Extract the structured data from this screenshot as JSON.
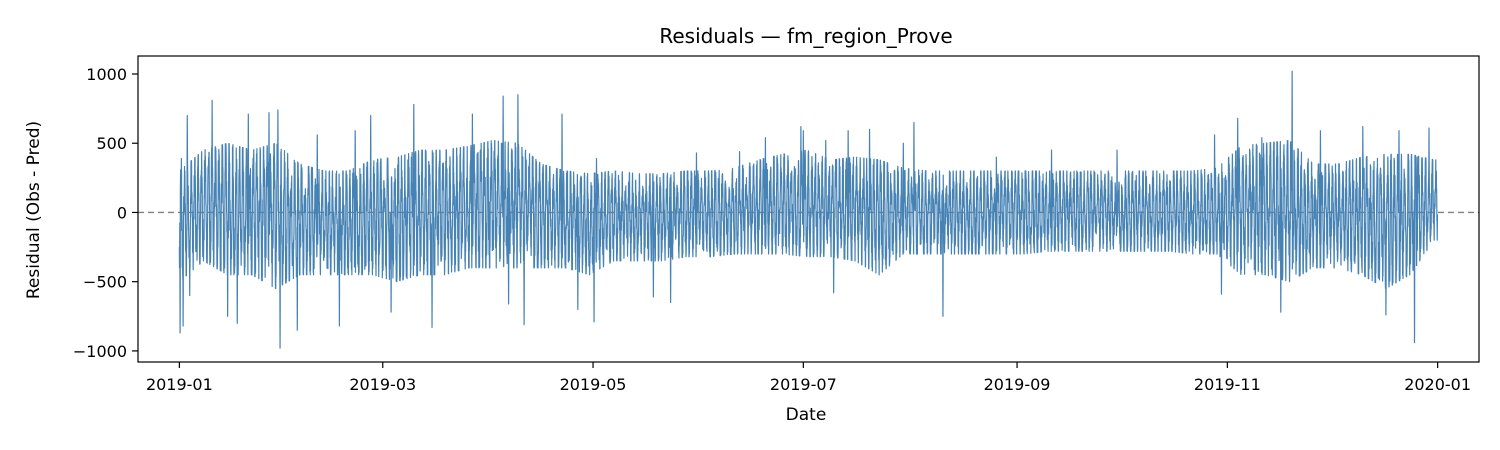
{
  "chart_data": {
    "type": "line",
    "title": "Residuals — fm_region_Prove",
    "xlabel": "Date",
    "ylabel": "Residual (Obs - Pred)",
    "x_range": [
      "2018-12-20",
      "2020-01-13"
    ],
    "ylim": [
      -1080,
      1130
    ],
    "x_ticks": [
      "2019-01",
      "2019-03",
      "2019-05",
      "2019-07",
      "2019-09",
      "2019-11",
      "2020-01"
    ],
    "x_tick_labels": [
      "2019-01",
      "2019-03",
      "2019-05",
      "2019-07",
      "2019-09",
      "2019-11",
      "2020-01"
    ],
    "y_ticks": [
      -1000,
      -500,
      0,
      500,
      1000
    ],
    "y_tick_labels": [
      "−1000",
      "−500",
      "0",
      "500",
      "1000"
    ],
    "grid": false,
    "reference_line": {
      "y": 0,
      "style": "dashed",
      "color": "#808080"
    },
    "series": [
      {
        "color": "#4682b4",
        "data_start": "2019-01-01",
        "data_end": "2019-12-31",
        "frequency": "hourly",
        "band_upper": [
          [
            0,
            300
          ],
          [
            7,
            450
          ],
          [
            14,
            500
          ],
          [
            21,
            450
          ],
          [
            28,
            500
          ],
          [
            35,
            350
          ],
          [
            42,
            300
          ],
          [
            49,
            300
          ],
          [
            56,
            380
          ],
          [
            63,
            400
          ],
          [
            70,
            450
          ],
          [
            77,
            450
          ],
          [
            84,
            480
          ],
          [
            91,
            520
          ],
          [
            98,
            500
          ],
          [
            105,
            350
          ],
          [
            112,
            300
          ],
          [
            119,
            280
          ],
          [
            126,
            300
          ],
          [
            133,
            280
          ],
          [
            140,
            280
          ],
          [
            147,
            300
          ],
          [
            154,
            300
          ],
          [
            161,
            320
          ],
          [
            168,
            380
          ],
          [
            175,
            420
          ],
          [
            182,
            450
          ],
          [
            189,
            380
          ],
          [
            196,
            400
          ],
          [
            203,
            380
          ],
          [
            210,
            320
          ],
          [
            217,
            300
          ],
          [
            224,
            300
          ],
          [
            231,
            300
          ],
          [
            238,
            300
          ],
          [
            245,
            300
          ],
          [
            252,
            300
          ],
          [
            259,
            300
          ],
          [
            266,
            300
          ],
          [
            273,
            300
          ],
          [
            280,
            300
          ],
          [
            287,
            300
          ],
          [
            294,
            300
          ],
          [
            301,
            320
          ],
          [
            308,
            480
          ],
          [
            315,
            500
          ],
          [
            322,
            520
          ],
          [
            329,
            350
          ],
          [
            336,
            350
          ],
          [
            343,
            400
          ],
          [
            350,
            420
          ],
          [
            357,
            420
          ],
          [
            364,
            380
          ]
        ],
        "band_lower": [
          [
            0,
            -500
          ],
          [
            7,
            -350
          ],
          [
            14,
            -450
          ],
          [
            21,
            -450
          ],
          [
            28,
            -550
          ],
          [
            35,
            -450
          ],
          [
            42,
            -450
          ],
          [
            49,
            -450
          ],
          [
            56,
            -450
          ],
          [
            63,
            -500
          ],
          [
            70,
            -450
          ],
          [
            77,
            -450
          ],
          [
            84,
            -400
          ],
          [
            91,
            -400
          ],
          [
            98,
            -400
          ],
          [
            105,
            -400
          ],
          [
            112,
            -400
          ],
          [
            119,
            -450
          ],
          [
            126,
            -350
          ],
          [
            133,
            -350
          ],
          [
            140,
            -350
          ],
          [
            147,
            -320
          ],
          [
            154,
            -320
          ],
          [
            161,
            -300
          ],
          [
            168,
            -300
          ],
          [
            175,
            -300
          ],
          [
            182,
            -320
          ],
          [
            189,
            -320
          ],
          [
            196,
            -350
          ],
          [
            203,
            -450
          ],
          [
            210,
            -300
          ],
          [
            217,
            -300
          ],
          [
            224,
            -300
          ],
          [
            231,
            -300
          ],
          [
            238,
            -300
          ],
          [
            245,
            -300
          ],
          [
            252,
            -280
          ],
          [
            259,
            -280
          ],
          [
            266,
            -280
          ],
          [
            273,
            -280
          ],
          [
            280,
            -280
          ],
          [
            287,
            -280
          ],
          [
            294,
            -300
          ],
          [
            301,
            -300
          ],
          [
            308,
            -450
          ],
          [
            315,
            -450
          ],
          [
            322,
            -500
          ],
          [
            329,
            -400
          ],
          [
            336,
            -400
          ],
          [
            343,
            -450
          ],
          [
            350,
            -550
          ],
          [
            357,
            -450
          ],
          [
            364,
            -200
          ]
        ],
        "extremes": [
          [
            0.2,
            -870
          ],
          [
            0.6,
            390
          ],
          [
            1.1,
            -820
          ],
          [
            1.6,
            300
          ],
          [
            2.3,
            700
          ],
          [
            3.0,
            -600
          ],
          [
            9.5,
            810
          ],
          [
            14.0,
            -750
          ],
          [
            16.8,
            -800
          ],
          [
            20.0,
            710
          ],
          [
            26.0,
            720
          ],
          [
            28.6,
            740
          ],
          [
            29.2,
            -980
          ],
          [
            34.2,
            -850
          ],
          [
            40.0,
            560
          ],
          [
            46.4,
            -820
          ],
          [
            51.0,
            590
          ],
          [
            55.5,
            700
          ],
          [
            61.4,
            -720
          ],
          [
            68.0,
            780
          ],
          [
            73.3,
            -830
          ],
          [
            85.0,
            710
          ],
          [
            93.9,
            840
          ],
          [
            95.5,
            -660
          ],
          [
            98.2,
            850
          ],
          [
            100.0,
            -810
          ],
          [
            111.0,
            710
          ],
          [
            115.6,
            -700
          ],
          [
            120.3,
            -790
          ],
          [
            121.0,
            390
          ],
          [
            137.5,
            -610
          ],
          [
            142.5,
            -650
          ],
          [
            150.0,
            430
          ],
          [
            162.5,
            440
          ],
          [
            170.0,
            540
          ],
          [
            180.3,
            620
          ],
          [
            181.0,
            590
          ],
          [
            187.5,
            520
          ],
          [
            189.8,
            -580
          ],
          [
            194.0,
            590
          ],
          [
            200.2,
            600
          ],
          [
            210.0,
            500
          ],
          [
            213.1,
            650
          ],
          [
            221.5,
            -750
          ],
          [
            237.0,
            400
          ],
          [
            253.0,
            450
          ],
          [
            272.0,
            450
          ],
          [
            300.3,
            560
          ],
          [
            302.3,
            -590
          ],
          [
            307.0,
            680
          ],
          [
            314.0,
            540
          ],
          [
            319.5,
            -720
          ],
          [
            322.8,
            1020
          ],
          [
            331.0,
            590
          ],
          [
            343.3,
            620
          ],
          [
            350.0,
            -740
          ],
          [
            353.8,
            590
          ],
          [
            358.3,
            -940
          ],
          [
            359.0,
            400
          ],
          [
            362.5,
            610
          ]
        ]
      }
    ]
  }
}
